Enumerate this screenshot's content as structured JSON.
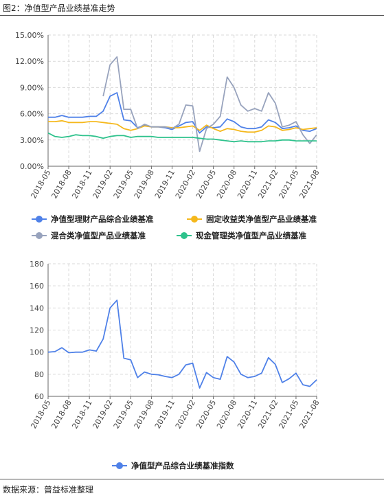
{
  "figure_title": "图2：净值型产品业绩基准走势",
  "source_note": "数据来源：普益标准整理",
  "colors": {
    "composite": "#4f81e8",
    "fixed_income": "#f5b81c",
    "mixed": "#98a3bd",
    "cash_mgmt": "#2ec28c",
    "index": "#4f81e8"
  },
  "chart_data": [
    {
      "type": "line",
      "x": [
        "2018-05",
        "2018-06",
        "2018-07",
        "2018-08",
        "2018-09",
        "2018-10",
        "2018-11",
        "2018-12",
        "2019-01",
        "2019-02",
        "2019-03",
        "2019-04",
        "2019-05",
        "2019-06",
        "2019-07",
        "2019-08",
        "2019-09",
        "2019-10",
        "2019-11",
        "2019-12",
        "2020-01",
        "2020-02",
        "2020-03",
        "2020-04",
        "2020-05",
        "2020-06",
        "2020-07",
        "2020-08",
        "2020-09",
        "2020-10",
        "2020-11",
        "2020-12",
        "2021-01",
        "2021-02",
        "2021-03",
        "2021-04",
        "2021-05",
        "2021-06",
        "2021-07",
        "2021-08"
      ],
      "x_tick_labels": [
        "2018-05",
        "2018-08",
        "2018-11",
        "2019-02",
        "2019-05",
        "2019-08",
        "2019-11",
        "2020-02",
        "2020-05",
        "2020-08",
        "2020-11",
        "2021-02",
        "2021-05",
        "2021-08"
      ],
      "y_tick_labels": [
        "0.00%",
        "3.00%",
        "6.00%",
        "9.00%",
        "12.00%",
        "15.00%"
      ],
      "ylim": [
        0,
        15
      ],
      "grid": true,
      "legend_position": "bottom",
      "series": [
        {
          "name": "净值型理财产品综合业绩基准",
          "color_key": "composite",
          "values": [
            5.6,
            5.6,
            5.8,
            5.6,
            5.6,
            5.6,
            5.7,
            5.7,
            6.3,
            8.0,
            8.4,
            5.3,
            5.2,
            4.4,
            4.7,
            4.5,
            4.5,
            4.4,
            4.2,
            4.6,
            5.0,
            5.1,
            3.8,
            4.5,
            4.4,
            4.5,
            5.4,
            5.1,
            4.5,
            4.3,
            4.3,
            4.5,
            5.3,
            5.0,
            4.3,
            4.4,
            4.6,
            4.1,
            4.0,
            4.3
          ]
        },
        {
          "name": "固定收益类净值型产品业绩基准",
          "color_key": "fixed_income",
          "values": [
            5.1,
            5.1,
            5.2,
            5.0,
            5.0,
            5.0,
            5.1,
            5.1,
            5.0,
            4.9,
            4.8,
            4.3,
            4.1,
            4.3,
            4.6,
            4.5,
            4.5,
            4.5,
            4.4,
            4.4,
            4.5,
            4.6,
            4.1,
            4.7,
            4.3,
            4.0,
            4.3,
            4.2,
            4.0,
            3.9,
            3.9,
            4.1,
            4.6,
            4.5,
            4.1,
            4.2,
            4.4,
            4.2,
            4.3,
            4.4
          ]
        },
        {
          "name": "混合类净值型产品业绩基准",
          "color_key": "mixed",
          "values": [
            null,
            null,
            null,
            null,
            null,
            null,
            null,
            null,
            8.0,
            11.6,
            12.5,
            6.5,
            6.5,
            4.3,
            4.8,
            4.5,
            4.5,
            4.5,
            4.3,
            4.8,
            7.0,
            6.9,
            1.7,
            4.3,
            4.8,
            5.7,
            10.2,
            9.0,
            7.0,
            6.3,
            6.6,
            6.3,
            8.4,
            7.2,
            4.5,
            4.7,
            5.1,
            3.6,
            2.6,
            3.6
          ]
        },
        {
          "name": "现金管理类净值型产品业绩基准",
          "color_key": "cash_mgmt",
          "values": [
            3.8,
            3.4,
            3.3,
            3.4,
            3.6,
            3.5,
            3.5,
            3.4,
            3.2,
            3.4,
            3.5,
            3.5,
            3.3,
            3.4,
            3.4,
            3.4,
            3.3,
            3.3,
            3.3,
            3.3,
            3.3,
            3.3,
            3.2,
            3.1,
            3.1,
            3.0,
            2.9,
            2.8,
            2.9,
            2.8,
            2.8,
            2.8,
            2.9,
            2.9,
            3.0,
            3.0,
            2.9,
            2.9,
            2.9,
            2.9
          ]
        }
      ]
    },
    {
      "type": "line",
      "x": [
        "2018-05",
        "2018-06",
        "2018-07",
        "2018-08",
        "2018-09",
        "2018-10",
        "2018-11",
        "2018-12",
        "2019-01",
        "2019-02",
        "2019-03",
        "2019-04",
        "2019-05",
        "2019-06",
        "2019-07",
        "2019-08",
        "2019-09",
        "2019-10",
        "2019-11",
        "2019-12",
        "2020-01",
        "2020-02",
        "2020-03",
        "2020-04",
        "2020-05",
        "2020-06",
        "2020-07",
        "2020-08",
        "2020-09",
        "2020-10",
        "2020-11",
        "2020-12",
        "2021-01",
        "2021-02",
        "2021-03",
        "2021-04",
        "2021-05",
        "2021-06",
        "2021-07",
        "2021-08"
      ],
      "x_tick_labels": [
        "2018-05",
        "2018-08",
        "2018-11",
        "2019-02",
        "2019-05",
        "2019-08",
        "2019-11",
        "2020-02",
        "2020-05",
        "2020-08",
        "2020-11",
        "2021-02",
        "2021-05",
        "2021-08"
      ],
      "y_tick_labels": [
        "60",
        "80",
        "100",
        "120",
        "140",
        "160",
        "180"
      ],
      "ylim": [
        60,
        180
      ],
      "grid": true,
      "legend_position": "bottom",
      "series": [
        {
          "name": "净值型产品综合业绩基准指数",
          "color_key": "index",
          "values": [
            100,
            100.5,
            104,
            99.5,
            100,
            100,
            102,
            101,
            112,
            140,
            147,
            94.5,
            93,
            77,
            82,
            80,
            79.5,
            78,
            77,
            80,
            88.5,
            90,
            67.5,
            81.5,
            77,
            75.5,
            96,
            91,
            80,
            77,
            78,
            81,
            95,
            89,
            72.5,
            76,
            81,
            70.5,
            69,
            75
          ]
        }
      ]
    }
  ]
}
